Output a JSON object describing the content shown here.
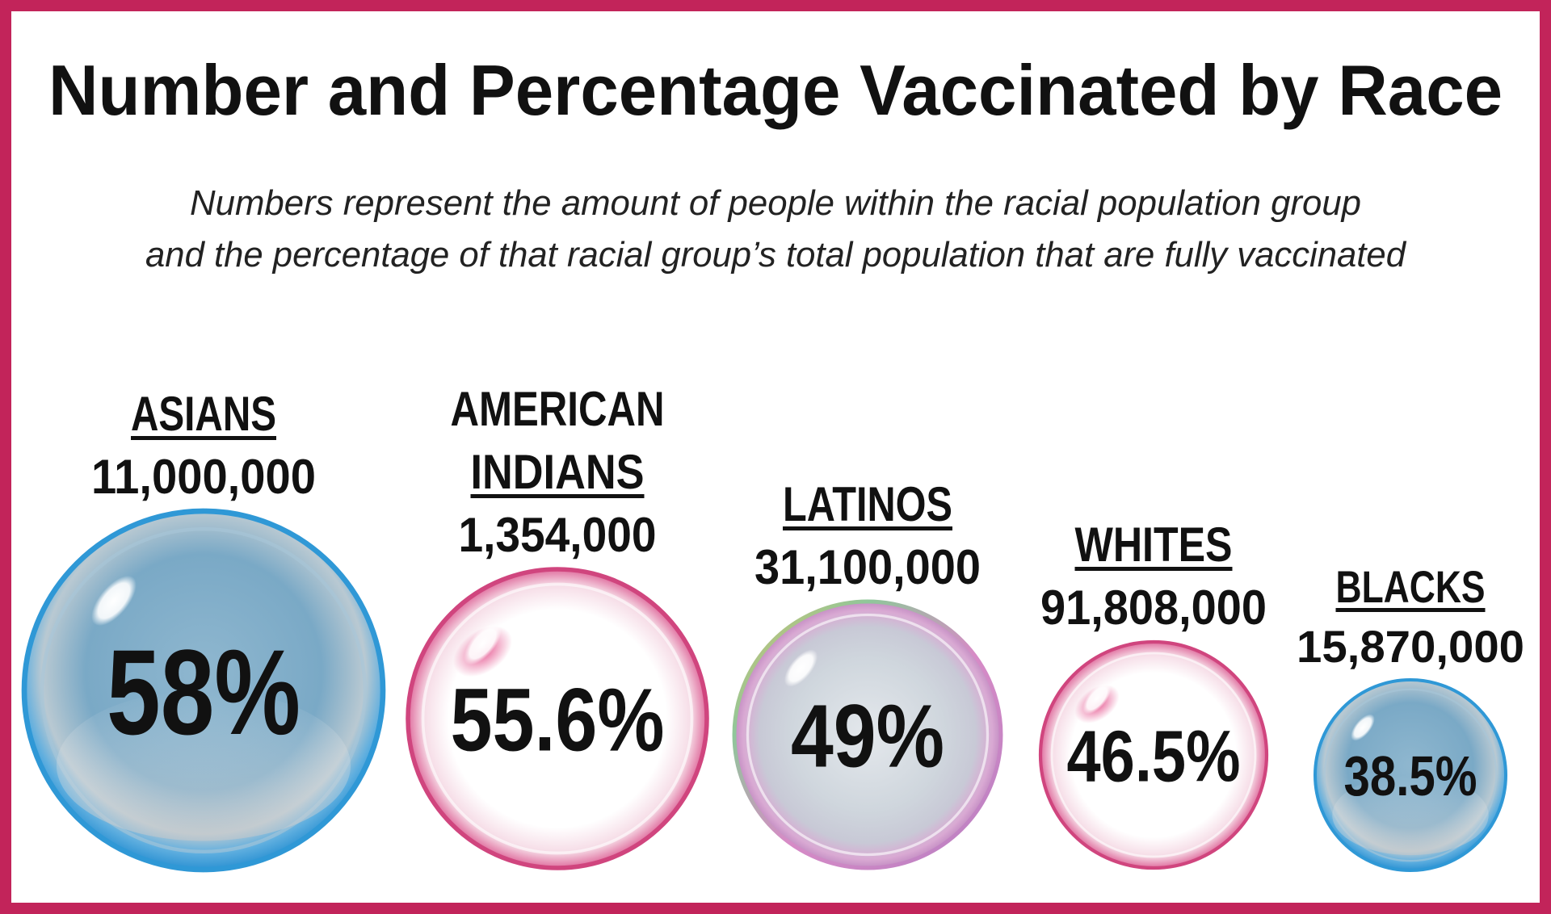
{
  "page": {
    "border_color": "#c2245a"
  },
  "chart_data": {
    "type": "bubble",
    "title": "Number and Percentage Vaccinated by Race",
    "subtitle_lines": [
      "Numbers represent the amount of people within the racial population group",
      "and the percentage of that racial group’s total population that are fully vaccinated"
    ],
    "series": [
      {
        "label_lines": [
          "ASIANS"
        ],
        "count": "11,000,000",
        "percent": 58,
        "percent_label": "58%",
        "style": "blue"
      },
      {
        "label_lines": [
          "AMERICAN",
          "INDIANS"
        ],
        "count": "1,354,000",
        "percent": 55.6,
        "percent_label": "55.6%",
        "style": "pink"
      },
      {
        "label_lines": [
          "LATINOS"
        ],
        "count": "31,100,000",
        "percent": 49,
        "percent_label": "49%",
        "style": "iridescent"
      },
      {
        "label_lines": [
          "WHITES"
        ],
        "count": "91,808,000",
        "percent": 46.5,
        "percent_label": "46.5%",
        "style": "pink"
      },
      {
        "label_lines": [
          "BLACKS"
        ],
        "count": "15,870,000",
        "percent": 38.5,
        "percent_label": "38.5%",
        "style": "blue"
      }
    ],
    "colors": {
      "blue_edge": "#2f98d6",
      "blue_fill": "#7eaecb",
      "pink_edge": "#d0457e",
      "iridescent_edge": "#c77fc0"
    }
  }
}
